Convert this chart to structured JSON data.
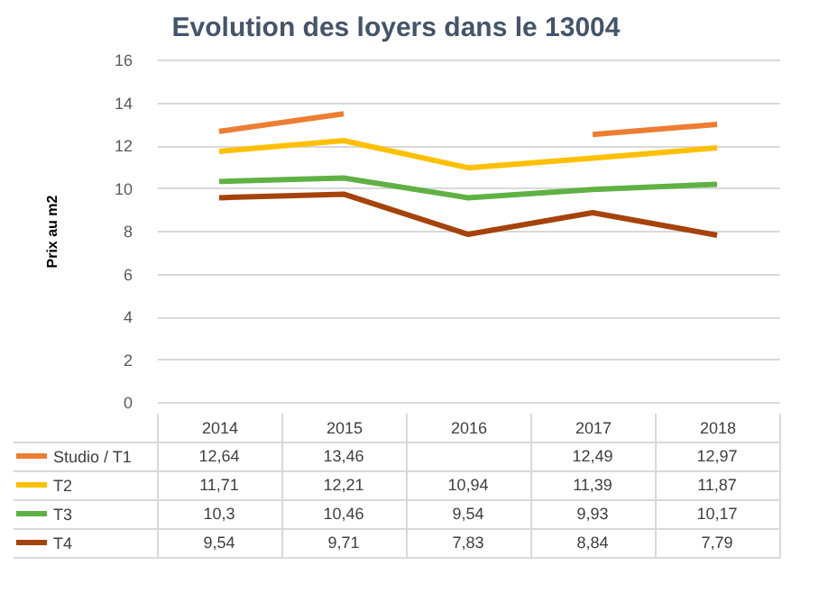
{
  "chart_data": {
    "type": "line",
    "title": "Evolution des loyers dans le 13004",
    "ylabel": "Prix au m2",
    "categories": [
      "2014",
      "2015",
      "2016",
      "2017",
      "2018"
    ],
    "series": [
      {
        "name": "Studio / T1",
        "color": "#ed7d31",
        "values": [
          12.64,
          13.46,
          null,
          12.49,
          12.97
        ],
        "value_labels": [
          "12,64",
          "13,46",
          null,
          "12,49",
          "12,97"
        ]
      },
      {
        "name": "T2",
        "color": "#ffc000",
        "values": [
          11.71,
          12.21,
          10.94,
          11.39,
          11.87
        ],
        "value_labels": [
          "11,71",
          "12,21",
          "10,94",
          "11,39",
          "11,87"
        ]
      },
      {
        "name": "T3",
        "color": "#5fb144",
        "values": [
          10.3,
          10.46,
          9.54,
          9.93,
          10.17
        ],
        "value_labels": [
          "10,3",
          "10,46",
          "9,54",
          "9,93",
          "10,17"
        ]
      },
      {
        "name": "T4",
        "color": "#a5430a",
        "values": [
          9.54,
          9.71,
          7.83,
          8.84,
          7.79
        ],
        "value_labels": [
          "9,54",
          "9,71",
          "7,83",
          "8,84",
          "7,79"
        ]
      }
    ],
    "ylim": [
      0,
      16
    ],
    "yticks": [
      0,
      2,
      4,
      6,
      8,
      10,
      12,
      14,
      16
    ],
    "grid": "y",
    "legend": "bottom left"
  }
}
